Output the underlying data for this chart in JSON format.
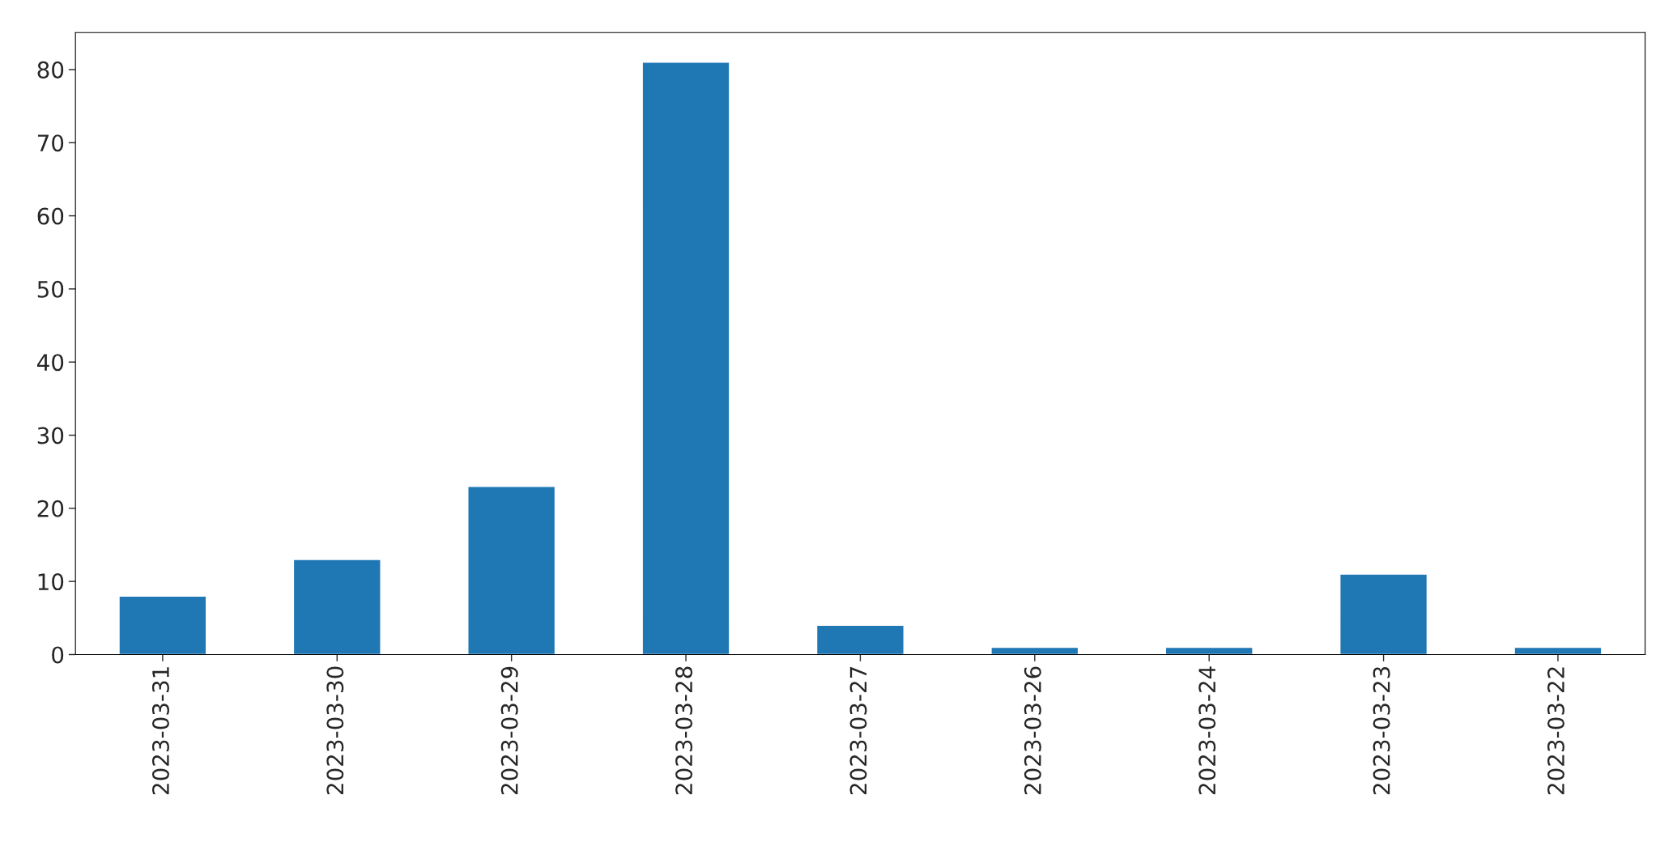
{
  "chart_data": {
    "type": "bar",
    "categories": [
      "2023-03-31",
      "2023-03-30",
      "2023-03-29",
      "2023-03-28",
      "2023-03-27",
      "2023-03-26",
      "2023-03-24",
      "2023-03-23",
      "2023-03-22"
    ],
    "values": [
      8,
      13,
      23,
      81,
      4,
      1,
      1,
      11,
      1
    ],
    "color": "#1f77b4",
    "ylim": [
      0,
      85.05
    ],
    "yticks": [
      0,
      10,
      20,
      30,
      40,
      50,
      60,
      70,
      80
    ],
    "grid": false,
    "legend": false
  }
}
